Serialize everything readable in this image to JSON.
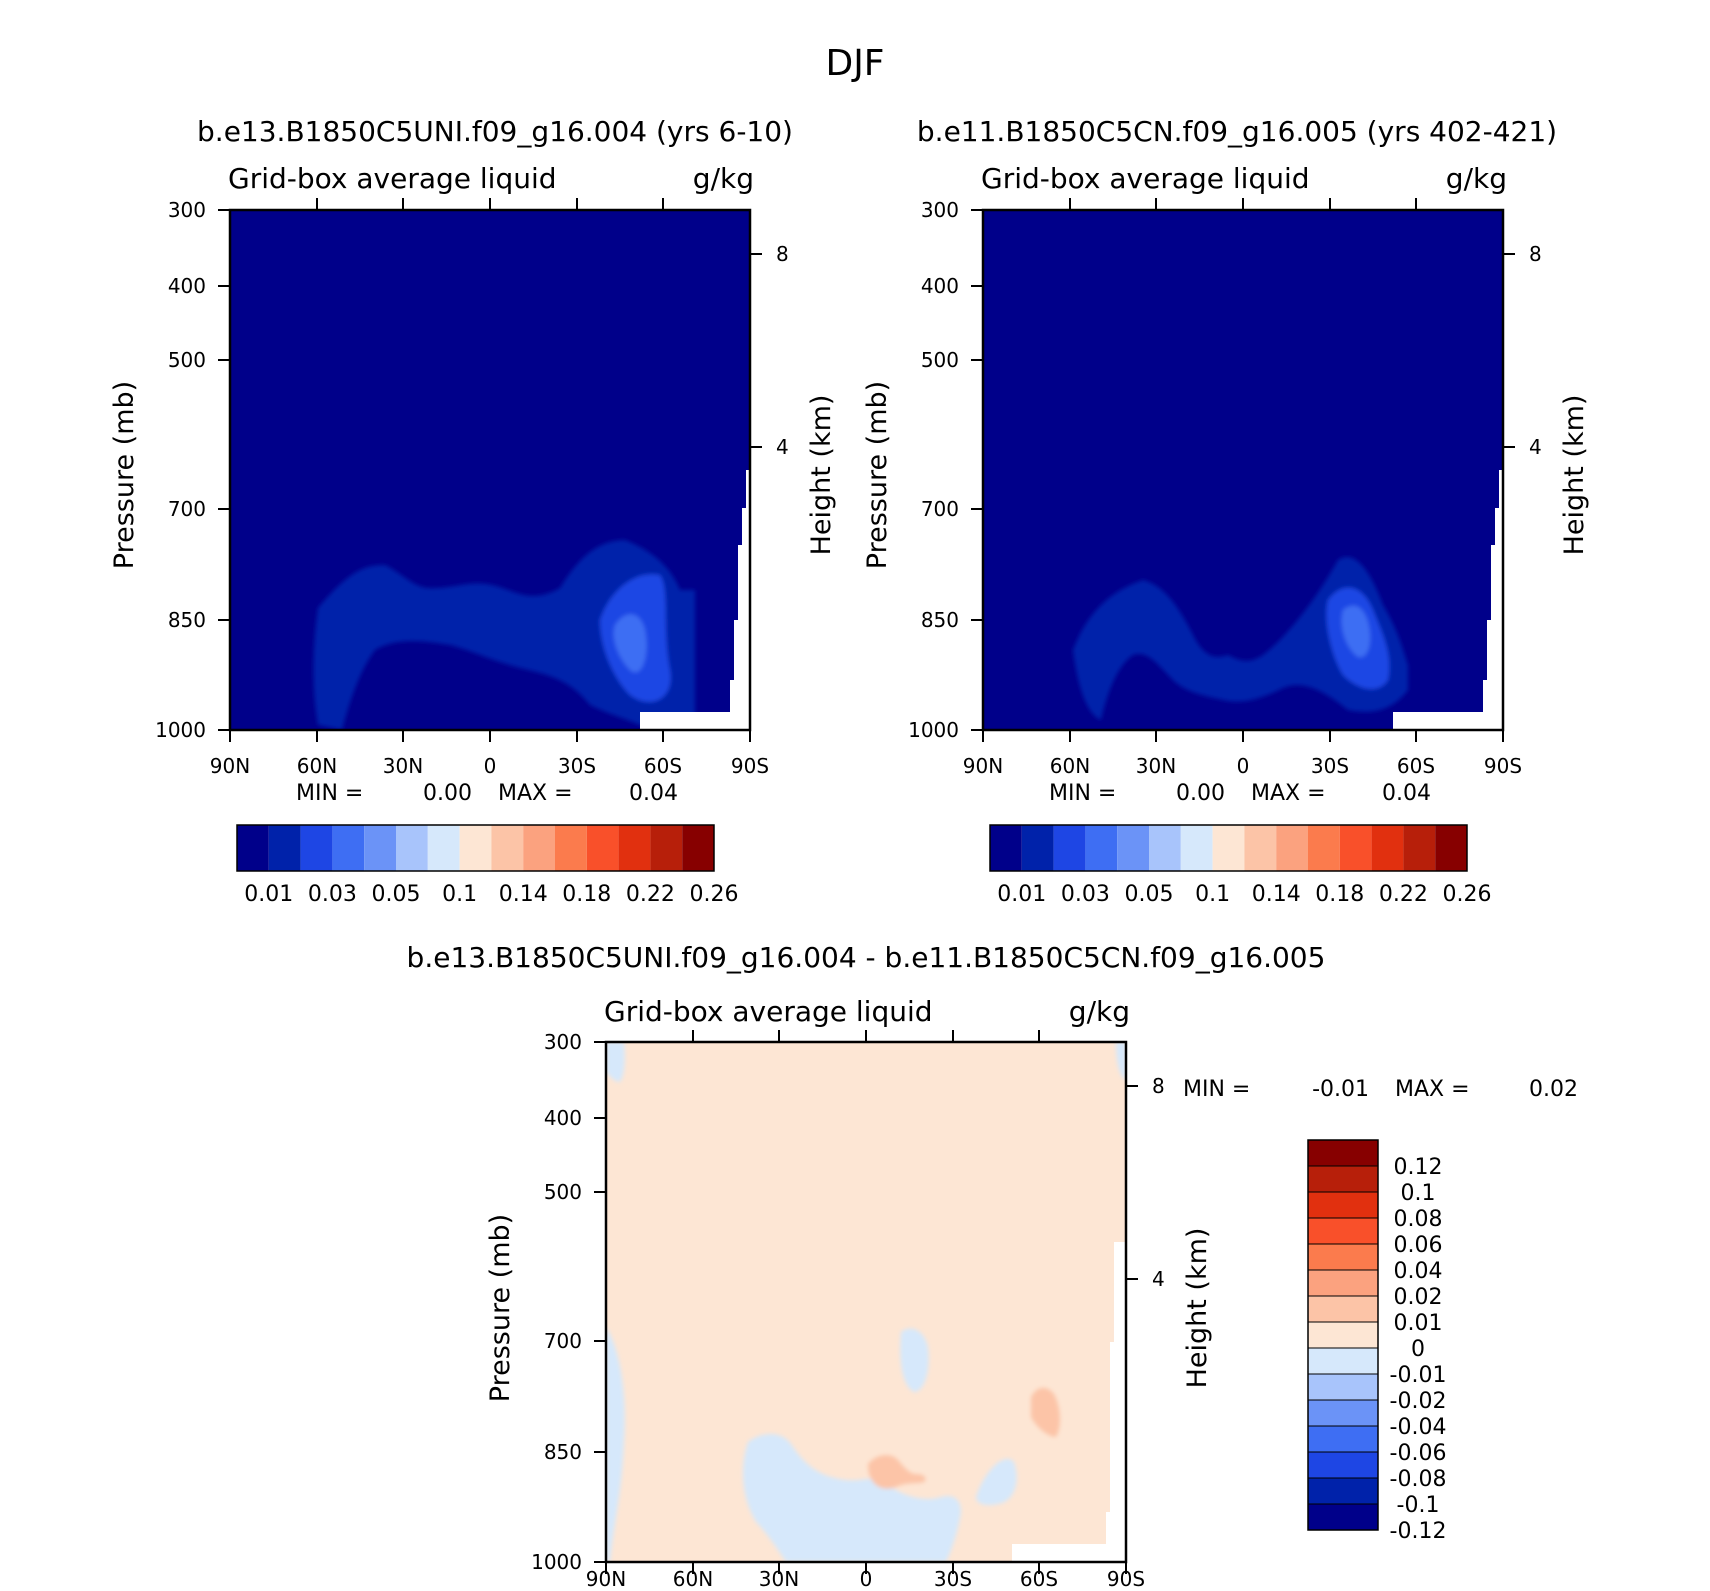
{
  "title": "DJF",
  "colors": {
    "bg": "#00008a",
    "c1": "#0022aa",
    "c2": "#1e46e4",
    "c3": "#3e6ef3",
    "c4": "#6b93f7",
    "c5": "#a8c4fb",
    "c6": "#d6e8fb",
    "c7": "#fde6d4",
    "c8": "#fcc4a7",
    "c9": "#fba27f",
    "c10": "#fb7b4d",
    "c11": "#f9502a",
    "c12": "#e1300f",
    "c13": "#b71f0a",
    "c14": "#870000"
  },
  "chart_data": [
    {
      "type": "heatmap",
      "title": "b.e13.B1850C5UNI.f09_g16.004 (yrs 6-10)",
      "variable": "Grid-box average liquid",
      "units": "g/kg",
      "xlabel": "",
      "ylabel": "Pressure (mb)",
      "ylabel_right": "Height (km)",
      "x_ticks": [
        "90N",
        "60N",
        "30N",
        "0",
        "30S",
        "60S",
        "90S"
      ],
      "y_ticks": [
        300,
        400,
        500,
        700,
        850,
        1000
      ],
      "y_right_ticks": [
        8,
        4
      ],
      "ylim": [
        1000,
        300
      ],
      "stats": {
        "min_label": "MIN =",
        "min": "0.00",
        "max_label": "MAX =",
        "max": "0.04"
      },
      "levels": [
        "0.01",
        "0.03",
        "0.05",
        "0.1",
        "0.14",
        "0.18",
        "0.22",
        "0.26"
      ],
      "fields": [
        {
          "pressure_mb": 860,
          "lat": -47,
          "value_range": [
            0.01,
            0.04
          ]
        },
        {
          "pressure_mb": 860,
          "lat": 40,
          "value_range": [
            0.01,
            0.02
          ]
        }
      ]
    },
    {
      "type": "heatmap",
      "title": "b.e11.B1850C5CN.f09_g16.005 (yrs 402-421)",
      "variable": "Grid-box average liquid",
      "units": "g/kg",
      "xlabel": "",
      "ylabel": "Pressure (mb)",
      "ylabel_right": "Height (km)",
      "x_ticks": [
        "90N",
        "60N",
        "30N",
        "0",
        "30S",
        "60S",
        "90S"
      ],
      "y_ticks": [
        300,
        400,
        500,
        700,
        850,
        1000
      ],
      "y_right_ticks": [
        8,
        4
      ],
      "ylim": [
        1000,
        300
      ],
      "stats": {
        "min_label": "MIN =",
        "min": "0.00",
        "max_label": "MAX =",
        "max": "0.04"
      },
      "levels": [
        "0.01",
        "0.03",
        "0.05",
        "0.1",
        "0.14",
        "0.18",
        "0.22",
        "0.26"
      ],
      "fields": [
        {
          "pressure_mb": 870,
          "lat": -45,
          "value_range": [
            0.01,
            0.04
          ]
        },
        {
          "pressure_mb": 870,
          "lat": 40,
          "value_range": [
            0.01,
            0.02
          ]
        }
      ]
    },
    {
      "type": "heatmap",
      "title": "b.e13.B1850C5UNI.f09_g16.004 - b.e11.B1850C5CN.f09_g16.005",
      "variable": "Grid-box average liquid",
      "units": "g/kg",
      "xlabel": "",
      "ylabel": "Pressure (mb)",
      "ylabel_right": "Height (km)",
      "x_ticks": [
        "90N",
        "60N",
        "30N",
        "0",
        "30S",
        "60S",
        "90S"
      ],
      "y_ticks": [
        300,
        400,
        500,
        700,
        850,
        1000
      ],
      "y_right_ticks": [
        8,
        4
      ],
      "ylim": [
        1000,
        300
      ],
      "stats": {
        "min_label": "MIN =",
        "min": "-0.01",
        "max_label": "MAX =",
        "max": "0.02"
      },
      "levels": [
        "0.12",
        "0.1",
        "0.08",
        "0.06",
        "0.04",
        "0.02",
        "0.01",
        "0",
        "-0.01",
        "-0.02",
        "-0.04",
        "-0.06",
        "-0.08",
        "-0.1",
        "-0.12"
      ],
      "fields": [
        {
          "pressure_mb": 900,
          "lat": 20,
          "value_range": [
            -0.01,
            0
          ]
        },
        {
          "pressure_mb": 870,
          "lat": -10,
          "value_range": [
            0.01,
            0.02
          ]
        },
        {
          "pressure_mb": 790,
          "lat": -62,
          "value_range": [
            0.01,
            0.02
          ]
        }
      ]
    }
  ]
}
